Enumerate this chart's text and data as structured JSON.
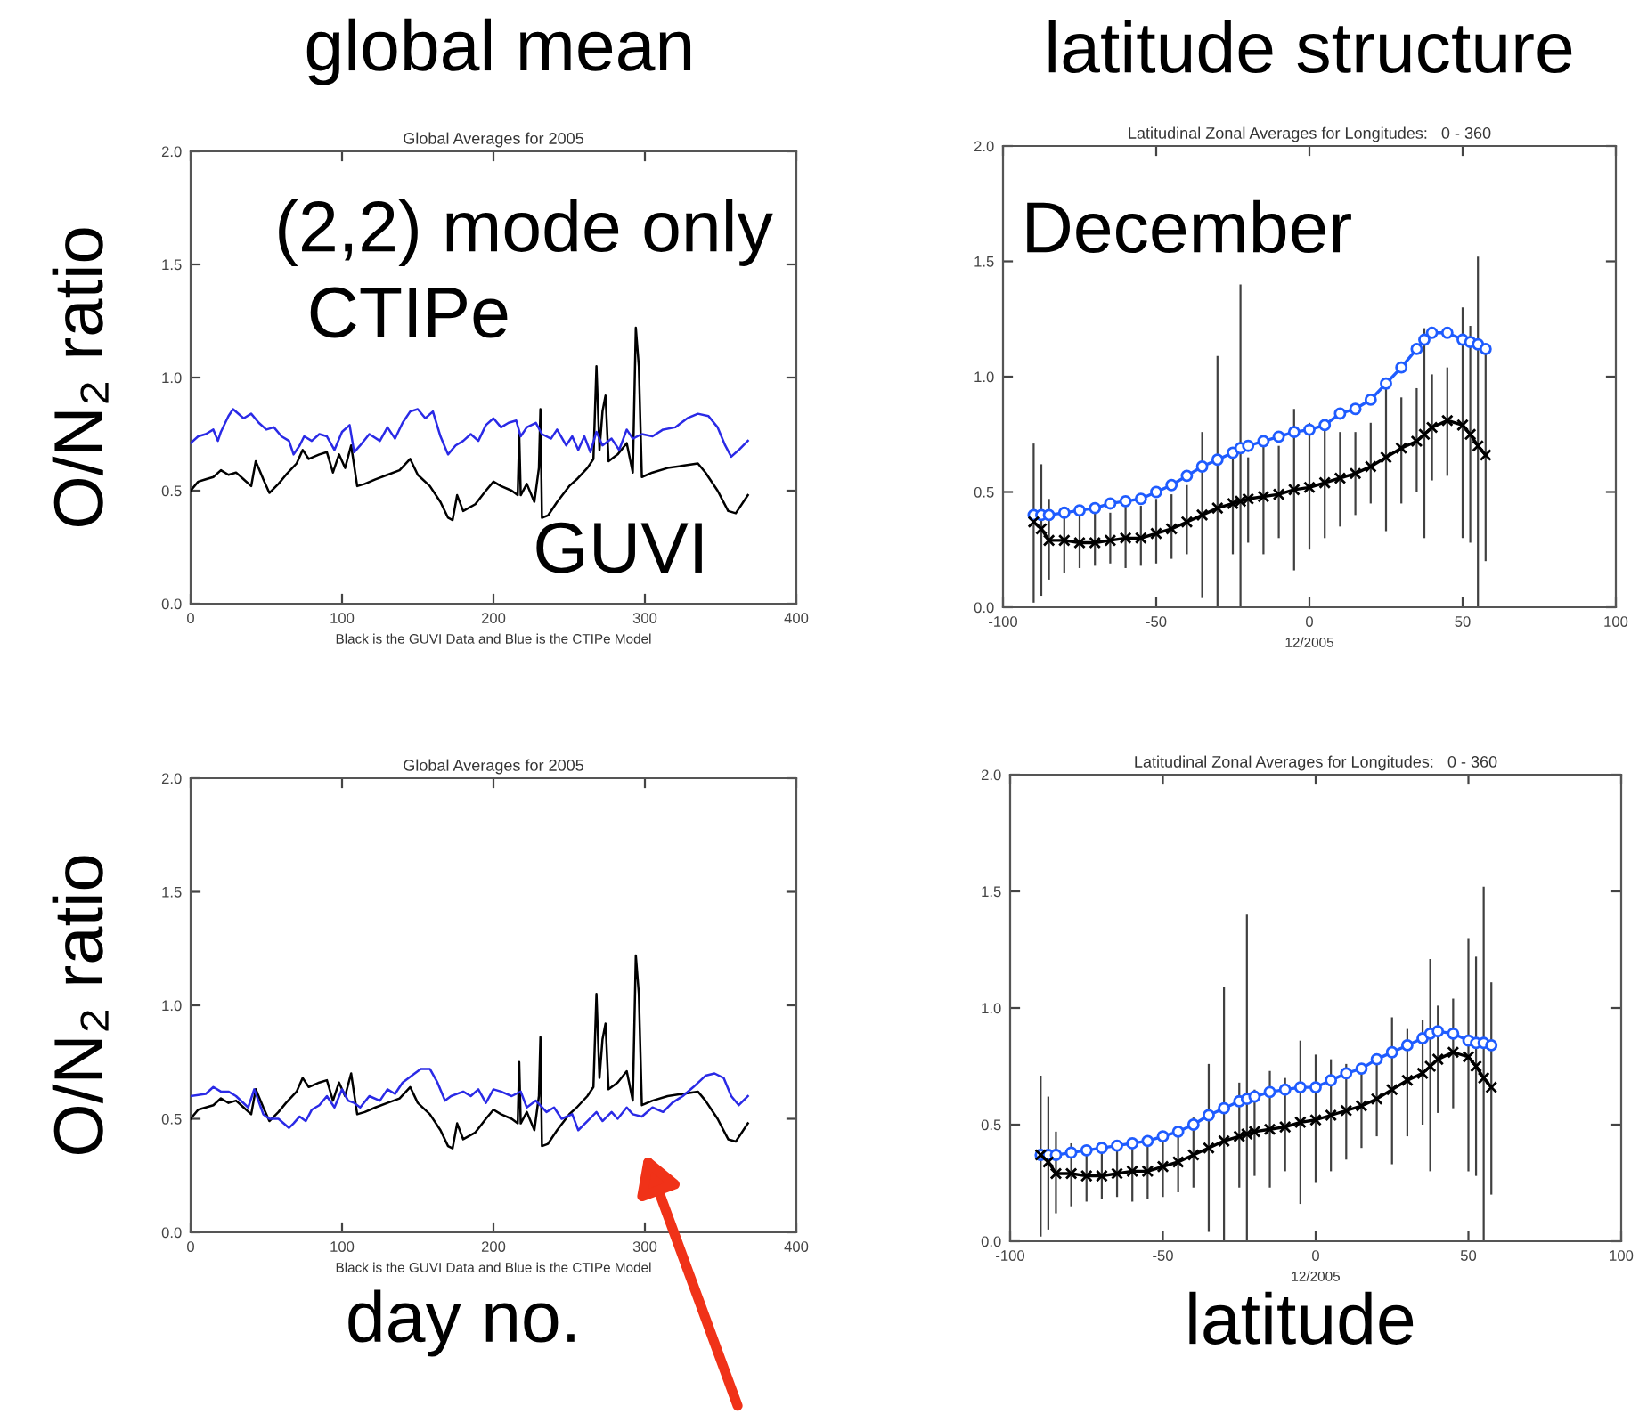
{
  "chart_data": [
    {
      "type": "line",
      "title": "Global Averages for 2005",
      "xlabel": "Black is the GUVI Data and Blue is the CTIPe Model",
      "ylabel": "O/N₂ ratio",
      "annotations": [
        "global mean",
        "(2,2) mode only",
        "CTIPe",
        "GUVI"
      ],
      "xlim": [
        0,
        400
      ],
      "xticks": [
        0,
        100,
        200,
        300,
        400
      ],
      "ylim": [
        0,
        2
      ],
      "yticks": [
        {
          "value": 0,
          "label": "0.0"
        },
        {
          "value": 0.5,
          "label": "0.5"
        },
        {
          "value": 1,
          "label": "1.0"
        },
        {
          "value": 1.5,
          "label": "1.5"
        },
        {
          "value": 2,
          "label": "2.0"
        }
      ],
      "series": [
        {
          "color": "#2a2ae6",
          "x": [
            0,
            5,
            10,
            15,
            18,
            20,
            25,
            28,
            35,
            40,
            45,
            50,
            55,
            60,
            65,
            68,
            72,
            75,
            80,
            85,
            90,
            95,
            100,
            105,
            108,
            112,
            118,
            125,
            130,
            135,
            140,
            145,
            150,
            155,
            160,
            165,
            170,
            175,
            180,
            185,
            190,
            195,
            200,
            205,
            210,
            215,
            218,
            222,
            228,
            232,
            238,
            242,
            248,
            252,
            256,
            260,
            264,
            268,
            272,
            278,
            283,
            288,
            292,
            298,
            305,
            312,
            320,
            328,
            335,
            342,
            348,
            353,
            357,
            362,
            368
          ],
          "values": [
            0.71,
            0.74,
            0.75,
            0.77,
            0.72,
            0.76,
            0.83,
            0.86,
            0.82,
            0.84,
            0.8,
            0.77,
            0.78,
            0.74,
            0.72,
            0.66,
            0.7,
            0.74,
            0.72,
            0.75,
            0.74,
            0.68,
            0.76,
            0.79,
            0.67,
            0.7,
            0.75,
            0.72,
            0.78,
            0.73,
            0.8,
            0.85,
            0.86,
            0.82,
            0.85,
            0.74,
            0.66,
            0.7,
            0.72,
            0.75,
            0.72,
            0.79,
            0.82,
            0.78,
            0.8,
            0.81,
            0.74,
            0.78,
            0.8,
            0.75,
            0.73,
            0.77,
            0.7,
            0.74,
            0.68,
            0.74,
            0.67,
            0.76,
            0.7,
            0.73,
            0.68,
            0.77,
            0.73,
            0.75,
            0.74,
            0.77,
            0.78,
            0.82,
            0.84,
            0.83,
            0.78,
            0.7,
            0.65,
            0.68,
            0.72
          ]
        },
        {
          "color": "#000000",
          "x": [
            0,
            5,
            10,
            15,
            20,
            25,
            30,
            35,
            40,
            43,
            48,
            52,
            58,
            63,
            70,
            74,
            78,
            85,
            90,
            94,
            98,
            102,
            106,
            110,
            115,
            122,
            130,
            138,
            145,
            150,
            158,
            165,
            170,
            173,
            176,
            180,
            188,
            195,
            200,
            205,
            212,
            216,
            217,
            218,
            222,
            227,
            230,
            231,
            232,
            236,
            242,
            250,
            255,
            262,
            266,
            268,
            270,
            272,
            274,
            276,
            282,
            288,
            292,
            294,
            296,
            298,
            305,
            315,
            325,
            335,
            340,
            348,
            355,
            360,
            368
          ],
          "values": [
            0.5,
            0.54,
            0.55,
            0.56,
            0.59,
            0.57,
            0.58,
            0.55,
            0.52,
            0.63,
            0.55,
            0.49,
            0.53,
            0.57,
            0.62,
            0.68,
            0.64,
            0.66,
            0.67,
            0.58,
            0.66,
            0.6,
            0.7,
            0.52,
            0.53,
            0.55,
            0.57,
            0.59,
            0.64,
            0.57,
            0.52,
            0.45,
            0.38,
            0.37,
            0.48,
            0.41,
            0.44,
            0.5,
            0.54,
            0.52,
            0.5,
            0.48,
            0.75,
            0.48,
            0.53,
            0.45,
            0.6,
            0.86,
            0.38,
            0.39,
            0.45,
            0.52,
            0.55,
            0.6,
            0.64,
            1.05,
            0.68,
            0.85,
            0.92,
            0.63,
            0.66,
            0.71,
            0.58,
            1.22,
            1.05,
            0.56,
            0.58,
            0.6,
            0.61,
            0.62,
            0.58,
            0.5,
            0.41,
            0.4,
            0.48
          ]
        }
      ]
    },
    {
      "type": "line",
      "title": "Latitudinal Zonal Averages for Longitudes:   0 - 360",
      "xlabel": "12/2005",
      "annotations": [
        "latitude structure",
        "December"
      ],
      "xlim": [
        -100,
        100
      ],
      "xticks": [
        -100,
        -50,
        0,
        50,
        100
      ],
      "ylim": [
        0,
        2
      ],
      "yticks": [
        {
          "value": 0,
          "label": "0.0"
        },
        {
          "value": 0.5,
          "label": "0.5"
        },
        {
          "value": 1,
          "label": "1.0"
        },
        {
          "value": 1.5,
          "label": "1.5"
        },
        {
          "value": 2,
          "label": "2.0"
        }
      ],
      "series": [
        {
          "color": "#000000",
          "marker": "cross",
          "x": [
            -90,
            -87.5,
            -85,
            -80,
            -75,
            -70,
            -65,
            -60,
            -55,
            -50,
            -45,
            -40,
            -35,
            -30,
            -25,
            -22.5,
            -20,
            -15,
            -10,
            -5,
            0,
            5,
            10,
            15,
            20,
            25,
            30,
            35,
            37.5,
            40,
            45,
            50,
            52.5,
            55,
            57.5
          ],
          "values": [
            0.37,
            0.34,
            0.29,
            0.29,
            0.28,
            0.28,
            0.29,
            0.3,
            0.3,
            0.32,
            0.34,
            0.37,
            0.4,
            0.43,
            0.45,
            0.46,
            0.47,
            0.48,
            0.49,
            0.51,
            0.52,
            0.54,
            0.56,
            0.58,
            0.61,
            0.65,
            0.69,
            0.72,
            0.75,
            0.78,
            0.81,
            0.79,
            0.75,
            0.7,
            0.66
          ],
          "errors": [
            [
              0.02,
              0.71
            ],
            [
              0.05,
              0.62
            ],
            [
              0.12,
              0.47
            ],
            [
              0.15,
              0.42
            ],
            [
              0.17,
              0.4
            ],
            [
              0.18,
              0.41
            ],
            [
              0.19,
              0.41
            ],
            [
              0.17,
              0.44
            ],
            [
              0.18,
              0.44
            ],
            [
              0.19,
              0.47
            ],
            [
              0.21,
              0.49
            ],
            [
              0.23,
              0.53
            ],
            [
              0.04,
              0.76
            ],
            [
              0,
              1.09
            ],
            [
              0.23,
              0.68
            ],
            [
              0,
              1.4
            ],
            [
              0.28,
              0.65
            ],
            [
              0.23,
              0.73
            ],
            [
              0.3,
              0.7
            ],
            [
              0.16,
              0.86
            ],
            [
              0.25,
              0.8
            ],
            [
              0.3,
              0.78
            ],
            [
              0.35,
              0.76
            ],
            [
              0.4,
              0.76
            ],
            [
              0.45,
              0.8
            ],
            [
              0.33,
              0.96
            ],
            [
              0.45,
              0.91
            ],
            [
              0.5,
              0.95
            ],
            [
              0.3,
              1.21
            ],
            [
              0.55,
              1.01
            ],
            [
              0.57,
              1.04
            ],
            [
              0.3,
              1.3
            ],
            [
              0.28,
              1.22
            ],
            [
              0,
              1.52
            ],
            [
              0.2,
              1.11
            ]
          ]
        },
        {
          "color": "#1f5cff",
          "marker": "circle",
          "x": [
            -90,
            -87.5,
            -85,
            -80,
            -75,
            -70,
            -65,
            -60,
            -55,
            -50,
            -45,
            -40,
            -35,
            -30,
            -25,
            -22.5,
            -20,
            -15,
            -10,
            -5,
            0,
            5,
            10,
            15,
            20,
            25,
            30,
            35,
            37.5,
            40,
            45,
            50,
            52.5,
            55,
            57.5
          ],
          "values": [
            0.4,
            0.4,
            0.4,
            0.41,
            0.42,
            0.43,
            0.45,
            0.46,
            0.47,
            0.5,
            0.53,
            0.57,
            0.61,
            0.64,
            0.67,
            0.69,
            0.7,
            0.72,
            0.74,
            0.76,
            0.77,
            0.79,
            0.84,
            0.86,
            0.9,
            0.97,
            1.04,
            1.12,
            1.16,
            1.19,
            1.19,
            1.16,
            1.15,
            1.14,
            1.12
          ]
        }
      ]
    },
    {
      "type": "line",
      "title": "Global Averages for 2005",
      "xlabel": "Black is the GUVI Data and Blue is the CTIPe Model",
      "ylabel": "O/N₂ ratio",
      "annotations": [
        "day no."
      ],
      "xlim": [
        0,
        400
      ],
      "xticks": [
        0,
        100,
        200,
        300,
        400
      ],
      "ylim": [
        0,
        2
      ],
      "yticks": [
        {
          "value": 0,
          "label": "0.0"
        },
        {
          "value": 0.5,
          "label": "0.5"
        },
        {
          "value": 1,
          "label": "1.0"
        },
        {
          "value": 1.5,
          "label": "1.5"
        },
        {
          "value": 2,
          "label": "2.0"
        }
      ],
      "series": [
        {
          "color": "#2a2ae6",
          "x": [
            0,
            10,
            15,
            20,
            25,
            30,
            38,
            42,
            48,
            52,
            58,
            65,
            68,
            72,
            76,
            80,
            85,
            90,
            95,
            100,
            104,
            108,
            112,
            118,
            125,
            130,
            135,
            140,
            148,
            152,
            158,
            163,
            168,
            172,
            180,
            185,
            190,
            195,
            200,
            205,
            212,
            218,
            222,
            228,
            235,
            240,
            245,
            252,
            256,
            262,
            268,
            272,
            278,
            282,
            288,
            292,
            298,
            305,
            312,
            318,
            325,
            332,
            340,
            346,
            352,
            357,
            362,
            368
          ],
          "values": [
            0.6,
            0.61,
            0.64,
            0.62,
            0.62,
            0.6,
            0.55,
            0.63,
            0.52,
            0.5,
            0.5,
            0.46,
            0.48,
            0.51,
            0.49,
            0.54,
            0.56,
            0.6,
            0.55,
            0.63,
            0.58,
            0.57,
            0.55,
            0.6,
            0.58,
            0.63,
            0.61,
            0.66,
            0.7,
            0.72,
            0.72,
            0.66,
            0.58,
            0.6,
            0.62,
            0.6,
            0.63,
            0.57,
            0.63,
            0.62,
            0.6,
            0.62,
            0.55,
            0.58,
            0.53,
            0.55,
            0.5,
            0.52,
            0.45,
            0.49,
            0.53,
            0.49,
            0.53,
            0.5,
            0.55,
            0.52,
            0.51,
            0.55,
            0.53,
            0.57,
            0.6,
            0.64,
            0.69,
            0.7,
            0.68,
            0.6,
            0.56,
            0.6
          ]
        },
        {
          "color": "#000000",
          "x": [
            0,
            5,
            10,
            15,
            20,
            25,
            30,
            35,
            40,
            43,
            48,
            52,
            58,
            63,
            70,
            74,
            78,
            85,
            90,
            94,
            98,
            102,
            106,
            110,
            115,
            122,
            130,
            138,
            145,
            150,
            158,
            165,
            170,
            173,
            176,
            180,
            188,
            195,
            200,
            205,
            212,
            216,
            217,
            218,
            222,
            227,
            230,
            231,
            232,
            236,
            242,
            250,
            255,
            262,
            266,
            268,
            270,
            272,
            274,
            276,
            282,
            288,
            292,
            294,
            296,
            298,
            305,
            315,
            325,
            335,
            340,
            348,
            355,
            360,
            368
          ],
          "values": [
            0.5,
            0.54,
            0.55,
            0.56,
            0.59,
            0.57,
            0.58,
            0.55,
            0.52,
            0.63,
            0.55,
            0.49,
            0.53,
            0.57,
            0.62,
            0.68,
            0.64,
            0.66,
            0.67,
            0.58,
            0.66,
            0.6,
            0.7,
            0.52,
            0.53,
            0.55,
            0.57,
            0.59,
            0.64,
            0.57,
            0.52,
            0.45,
            0.38,
            0.37,
            0.48,
            0.41,
            0.44,
            0.5,
            0.54,
            0.52,
            0.5,
            0.48,
            0.75,
            0.48,
            0.53,
            0.45,
            0.6,
            0.86,
            0.38,
            0.39,
            0.45,
            0.52,
            0.55,
            0.6,
            0.64,
            1.05,
            0.68,
            0.85,
            0.92,
            0.63,
            0.66,
            0.71,
            0.58,
            1.22,
            1.05,
            0.56,
            0.58,
            0.6,
            0.61,
            0.62,
            0.58,
            0.5,
            0.41,
            0.4,
            0.48
          ]
        }
      ]
    },
    {
      "type": "line",
      "title": "Latitudinal Zonal Averages for Longitudes:   0 - 360",
      "xlabel": "12/2005",
      "annotations": [
        "latitude"
      ],
      "xlim": [
        -100,
        100
      ],
      "xticks": [
        -100,
        -50,
        0,
        50,
        100
      ],
      "ylim": [
        0,
        2
      ],
      "yticks": [
        {
          "value": 0,
          "label": "0.0"
        },
        {
          "value": 0.5,
          "label": "0.5"
        },
        {
          "value": 1,
          "label": "1.0"
        },
        {
          "value": 1.5,
          "label": "1.5"
        },
        {
          "value": 2,
          "label": "2.0"
        }
      ],
      "series": [
        {
          "color": "#000000",
          "marker": "cross",
          "x": [
            -90,
            -87.5,
            -85,
            -80,
            -75,
            -70,
            -65,
            -60,
            -55,
            -50,
            -45,
            -40,
            -35,
            -30,
            -25,
            -22.5,
            -20,
            -15,
            -10,
            -5,
            0,
            5,
            10,
            15,
            20,
            25,
            30,
            35,
            37.5,
            40,
            45,
            50,
            52.5,
            55,
            57.5
          ],
          "values": [
            0.37,
            0.34,
            0.29,
            0.29,
            0.28,
            0.28,
            0.29,
            0.3,
            0.3,
            0.32,
            0.34,
            0.37,
            0.4,
            0.43,
            0.45,
            0.46,
            0.47,
            0.48,
            0.49,
            0.51,
            0.52,
            0.54,
            0.56,
            0.58,
            0.61,
            0.65,
            0.69,
            0.72,
            0.75,
            0.78,
            0.81,
            0.79,
            0.75,
            0.7,
            0.66
          ],
          "errors": [
            [
              0.02,
              0.71
            ],
            [
              0.05,
              0.62
            ],
            [
              0.12,
              0.47
            ],
            [
              0.15,
              0.42
            ],
            [
              0.17,
              0.4
            ],
            [
              0.18,
              0.41
            ],
            [
              0.19,
              0.41
            ],
            [
              0.17,
              0.44
            ],
            [
              0.18,
              0.44
            ],
            [
              0.19,
              0.47
            ],
            [
              0.21,
              0.49
            ],
            [
              0.23,
              0.53
            ],
            [
              0.04,
              0.76
            ],
            [
              0,
              1.09
            ],
            [
              0.23,
              0.68
            ],
            [
              0,
              1.4
            ],
            [
              0.28,
              0.65
            ],
            [
              0.23,
              0.73
            ],
            [
              0.3,
              0.7
            ],
            [
              0.16,
              0.86
            ],
            [
              0.25,
              0.8
            ],
            [
              0.3,
              0.78
            ],
            [
              0.35,
              0.76
            ],
            [
              0.4,
              0.76
            ],
            [
              0.45,
              0.8
            ],
            [
              0.33,
              0.96
            ],
            [
              0.45,
              0.91
            ],
            [
              0.5,
              0.95
            ],
            [
              0.3,
              1.21
            ],
            [
              0.55,
              1.01
            ],
            [
              0.57,
              1.04
            ],
            [
              0.3,
              1.3
            ],
            [
              0.28,
              1.22
            ],
            [
              0,
              1.52
            ],
            [
              0.2,
              1.11
            ]
          ]
        },
        {
          "color": "#1f5cff",
          "marker": "circle",
          "x": [
            -90,
            -87.5,
            -85,
            -80,
            -75,
            -70,
            -65,
            -60,
            -55,
            -50,
            -45,
            -40,
            -35,
            -30,
            -25,
            -22.5,
            -20,
            -15,
            -10,
            -5,
            0,
            5,
            10,
            15,
            20,
            25,
            30,
            35,
            37.5,
            40,
            45,
            50,
            52.5,
            55,
            57.5
          ],
          "values": [
            0.37,
            0.37,
            0.37,
            0.38,
            0.39,
            0.4,
            0.41,
            0.42,
            0.43,
            0.45,
            0.47,
            0.5,
            0.54,
            0.57,
            0.6,
            0.61,
            0.62,
            0.64,
            0.65,
            0.66,
            0.66,
            0.69,
            0.72,
            0.74,
            0.78,
            0.81,
            0.84,
            0.87,
            0.89,
            0.9,
            0.89,
            0.86,
            0.85,
            0.85,
            0.84
          ]
        }
      ]
    }
  ]
}
